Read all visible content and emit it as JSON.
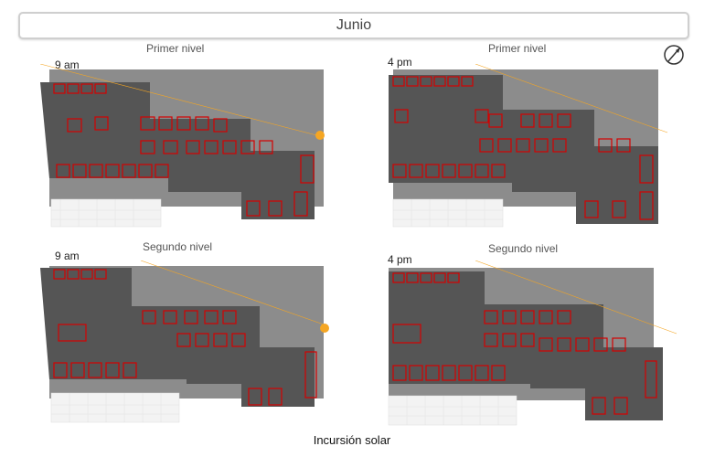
{
  "header": {
    "title": "Junio"
  },
  "panels": [
    {
      "level": "Primer nivel",
      "time": "9 am"
    },
    {
      "level": "Primer nivel",
      "time": "4 pm"
    },
    {
      "level": "Segundo nivel",
      "time": "9 am"
    },
    {
      "level": "Segundo nivel",
      "time": "4 pm"
    }
  ],
  "caption": "Incursión solar",
  "colors": {
    "shadow": "#5a5a5a",
    "ground": "#8c8c8c",
    "walls": "#d40000",
    "sun": "#f5a623"
  },
  "icons": {
    "compass": "north-arrow-icon"
  }
}
